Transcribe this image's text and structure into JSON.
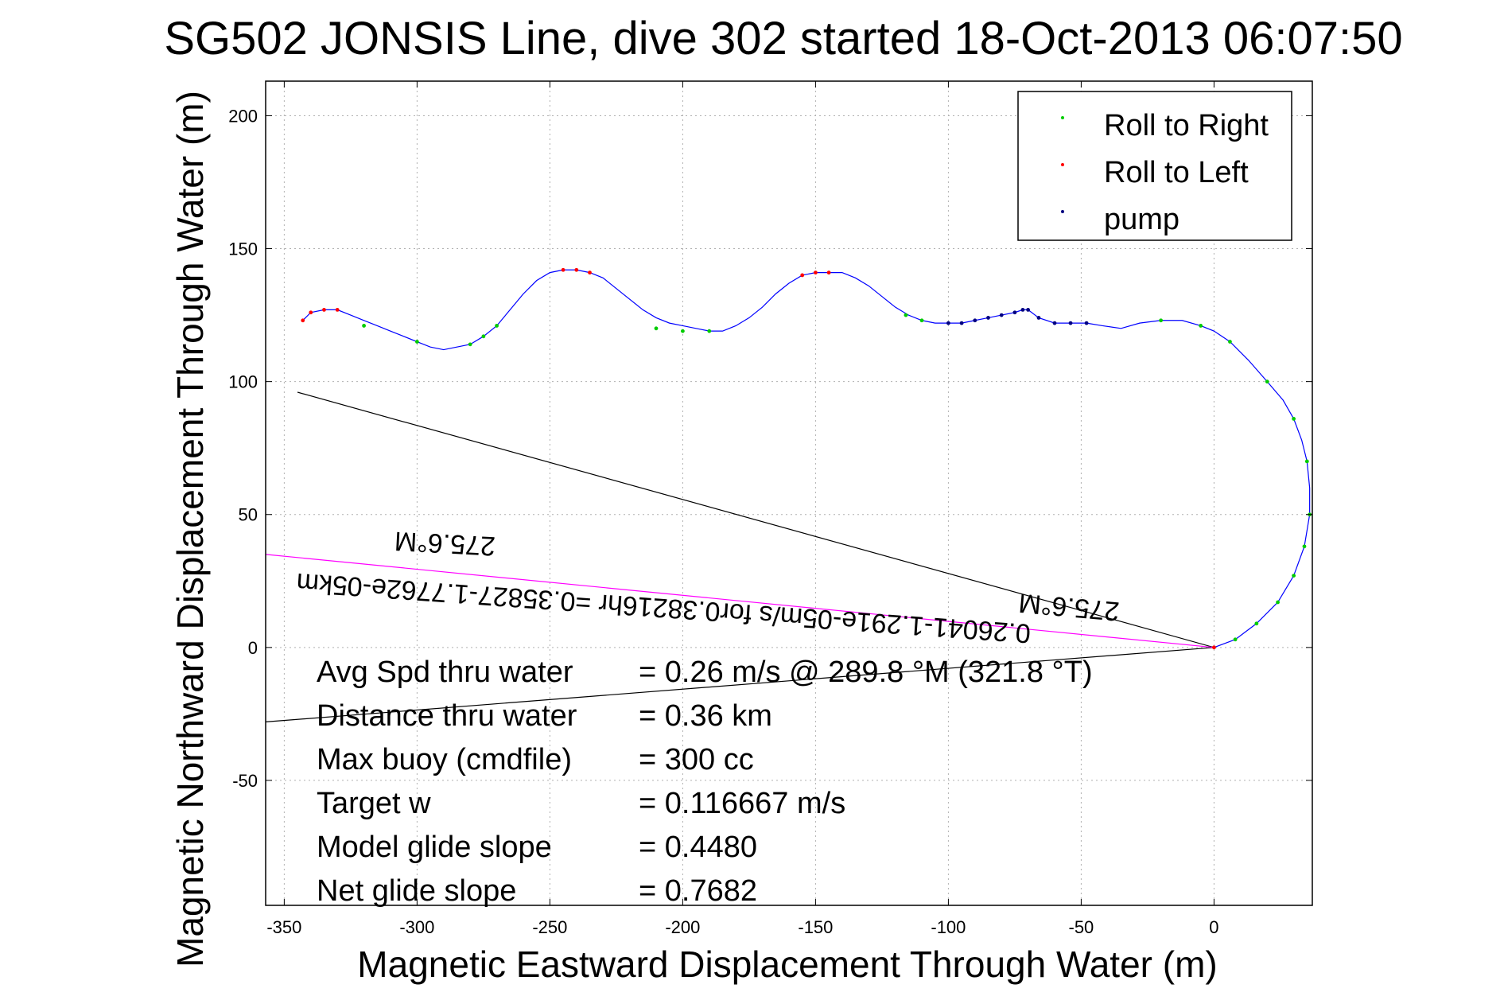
{
  "chart_data": {
    "type": "line",
    "title": "SG502 JONSIS Line, dive 302 started 18-Oct-2013 06:07:50",
    "xlabel": "Magnetic Eastward Displacement Through Water (m)",
    "ylabel": "Magnetic Northward Displacement Through Water (m)",
    "xlim": [
      -357,
      37
    ],
    "ylim": [
      -97,
      213
    ],
    "xticks": [
      -350,
      -300,
      -250,
      -200,
      -150,
      -100,
      -50,
      0
    ],
    "yticks": [
      -50,
      0,
      50,
      100,
      150,
      200
    ],
    "grid": true,
    "legend_position": "top-right",
    "colors": {
      "track": "#0000ff",
      "roll_right": "#00cc00",
      "roll_left": "#ff0000",
      "pump": "#000080",
      "guide_lines": "#000000",
      "magenta_line": "#ff00ff"
    },
    "series": [
      {
        "name": "track",
        "x": [
          0,
          8,
          16,
          24,
          30,
          34,
          36,
          36,
          35,
          33,
          30,
          26,
          20,
          13,
          6,
          0,
          -5,
          -12,
          -20,
          -28,
          -35,
          -42,
          -48,
          -54,
          -60,
          -66,
          -70,
          -72,
          -75,
          -80,
          -85,
          -90,
          -95,
          -100,
          -105,
          -110,
          -115,
          -120,
          -125,
          -130,
          -135,
          -140,
          -145,
          -150,
          -155,
          -160,
          -165,
          -170,
          -175,
          -180,
          -185,
          -190,
          -195,
          -200,
          -205,
          -210,
          -215,
          -220,
          -225,
          -230,
          -235,
          -240,
          -245,
          -250,
          -255,
          -260,
          -265,
          -270,
          -275,
          -280,
          -285,
          -290,
          -295,
          -300,
          -305,
          -310,
          -315,
          -320,
          -325,
          -330,
          -335,
          -340,
          -343
        ],
        "y": [
          0,
          3,
          9,
          17,
          27,
          38,
          50,
          60,
          70,
          78,
          86,
          93,
          100,
          108,
          115,
          119,
          121,
          123,
          123,
          122,
          120,
          121,
          122,
          122,
          122,
          124,
          127,
          127,
          126,
          125,
          124,
          123,
          122,
          122,
          122,
          123,
          125,
          128,
          132,
          136,
          139,
          141,
          141,
          141,
          140,
          137,
          133,
          128,
          124,
          121,
          119,
          119,
          120,
          121,
          122,
          124,
          127,
          131,
          135,
          139,
          141,
          142,
          142,
          141,
          138,
          133,
          127,
          121,
          117,
          114,
          113,
          112,
          113,
          115,
          117,
          119,
          121,
          123,
          125,
          127,
          127,
          126,
          123
        ]
      },
      {
        "name": "Roll to Right",
        "x": [
          8,
          16,
          24,
          30,
          34,
          36,
          35,
          30,
          20,
          6,
          -5,
          -20,
          -110,
          -116,
          -190,
          -200,
          -210,
          -270,
          -275,
          -280,
          -300,
          -320
        ],
        "y": [
          3,
          9,
          17,
          27,
          38,
          50,
          70,
          86,
          100,
          115,
          121,
          123,
          123,
          125,
          119,
          119,
          120,
          121,
          117,
          114,
          115,
          121
        ]
      },
      {
        "name": "Roll to Left",
        "x": [
          0,
          -150,
          -145,
          -155,
          -240,
          -235,
          -245,
          -330,
          -335,
          -340,
          -343
        ],
        "y": [
          0,
          141,
          141,
          140,
          142,
          141,
          142,
          127,
          127,
          126,
          123
        ]
      },
      {
        "name": "pump",
        "x": [
          -100,
          -95,
          -90,
          -85,
          -80,
          -75,
          -72,
          -70,
          -66,
          -60,
          -54,
          -48
        ],
        "y": [
          122,
          122,
          123,
          124,
          125,
          126,
          127,
          127,
          124,
          122,
          122,
          122
        ]
      }
    ],
    "guide_lines": [
      {
        "x": [
          0,
          -345
        ],
        "y": [
          0,
          96
        ]
      },
      {
        "x": [
          0,
          -357
        ],
        "y": [
          0,
          -28
        ]
      },
      {
        "x": [
          0,
          -357
        ],
        "y": [
          0,
          35
        ]
      }
    ],
    "annotations": {
      "heading_near": "275.6°M",
      "heading_far": "275.6°M",
      "long_label": "0.26041-1.291e-05m/s for0.38216hr =0.35827-1.7762e-05km"
    }
  },
  "legend": {
    "roll_right": "Roll to Right",
    "roll_left": "Roll to Left",
    "pump": "pump"
  },
  "info_box": {
    "rows": [
      {
        "label": "Avg Spd thru water",
        "value": "=  0.26 m/s @ 289.8 °M (321.8 °T)"
      },
      {
        "label": "Distance thru water",
        "value": "=  0.36 km"
      },
      {
        "label": "Max buoy (cmdfile)",
        "value": "= 300 cc"
      },
      {
        "label": "Target w",
        "value": "= 0.116667 m/s"
      },
      {
        "label": "Model glide slope",
        "value": "= 0.4480"
      },
      {
        "label": "Net glide slope",
        "value": "= 0.7682"
      }
    ]
  }
}
